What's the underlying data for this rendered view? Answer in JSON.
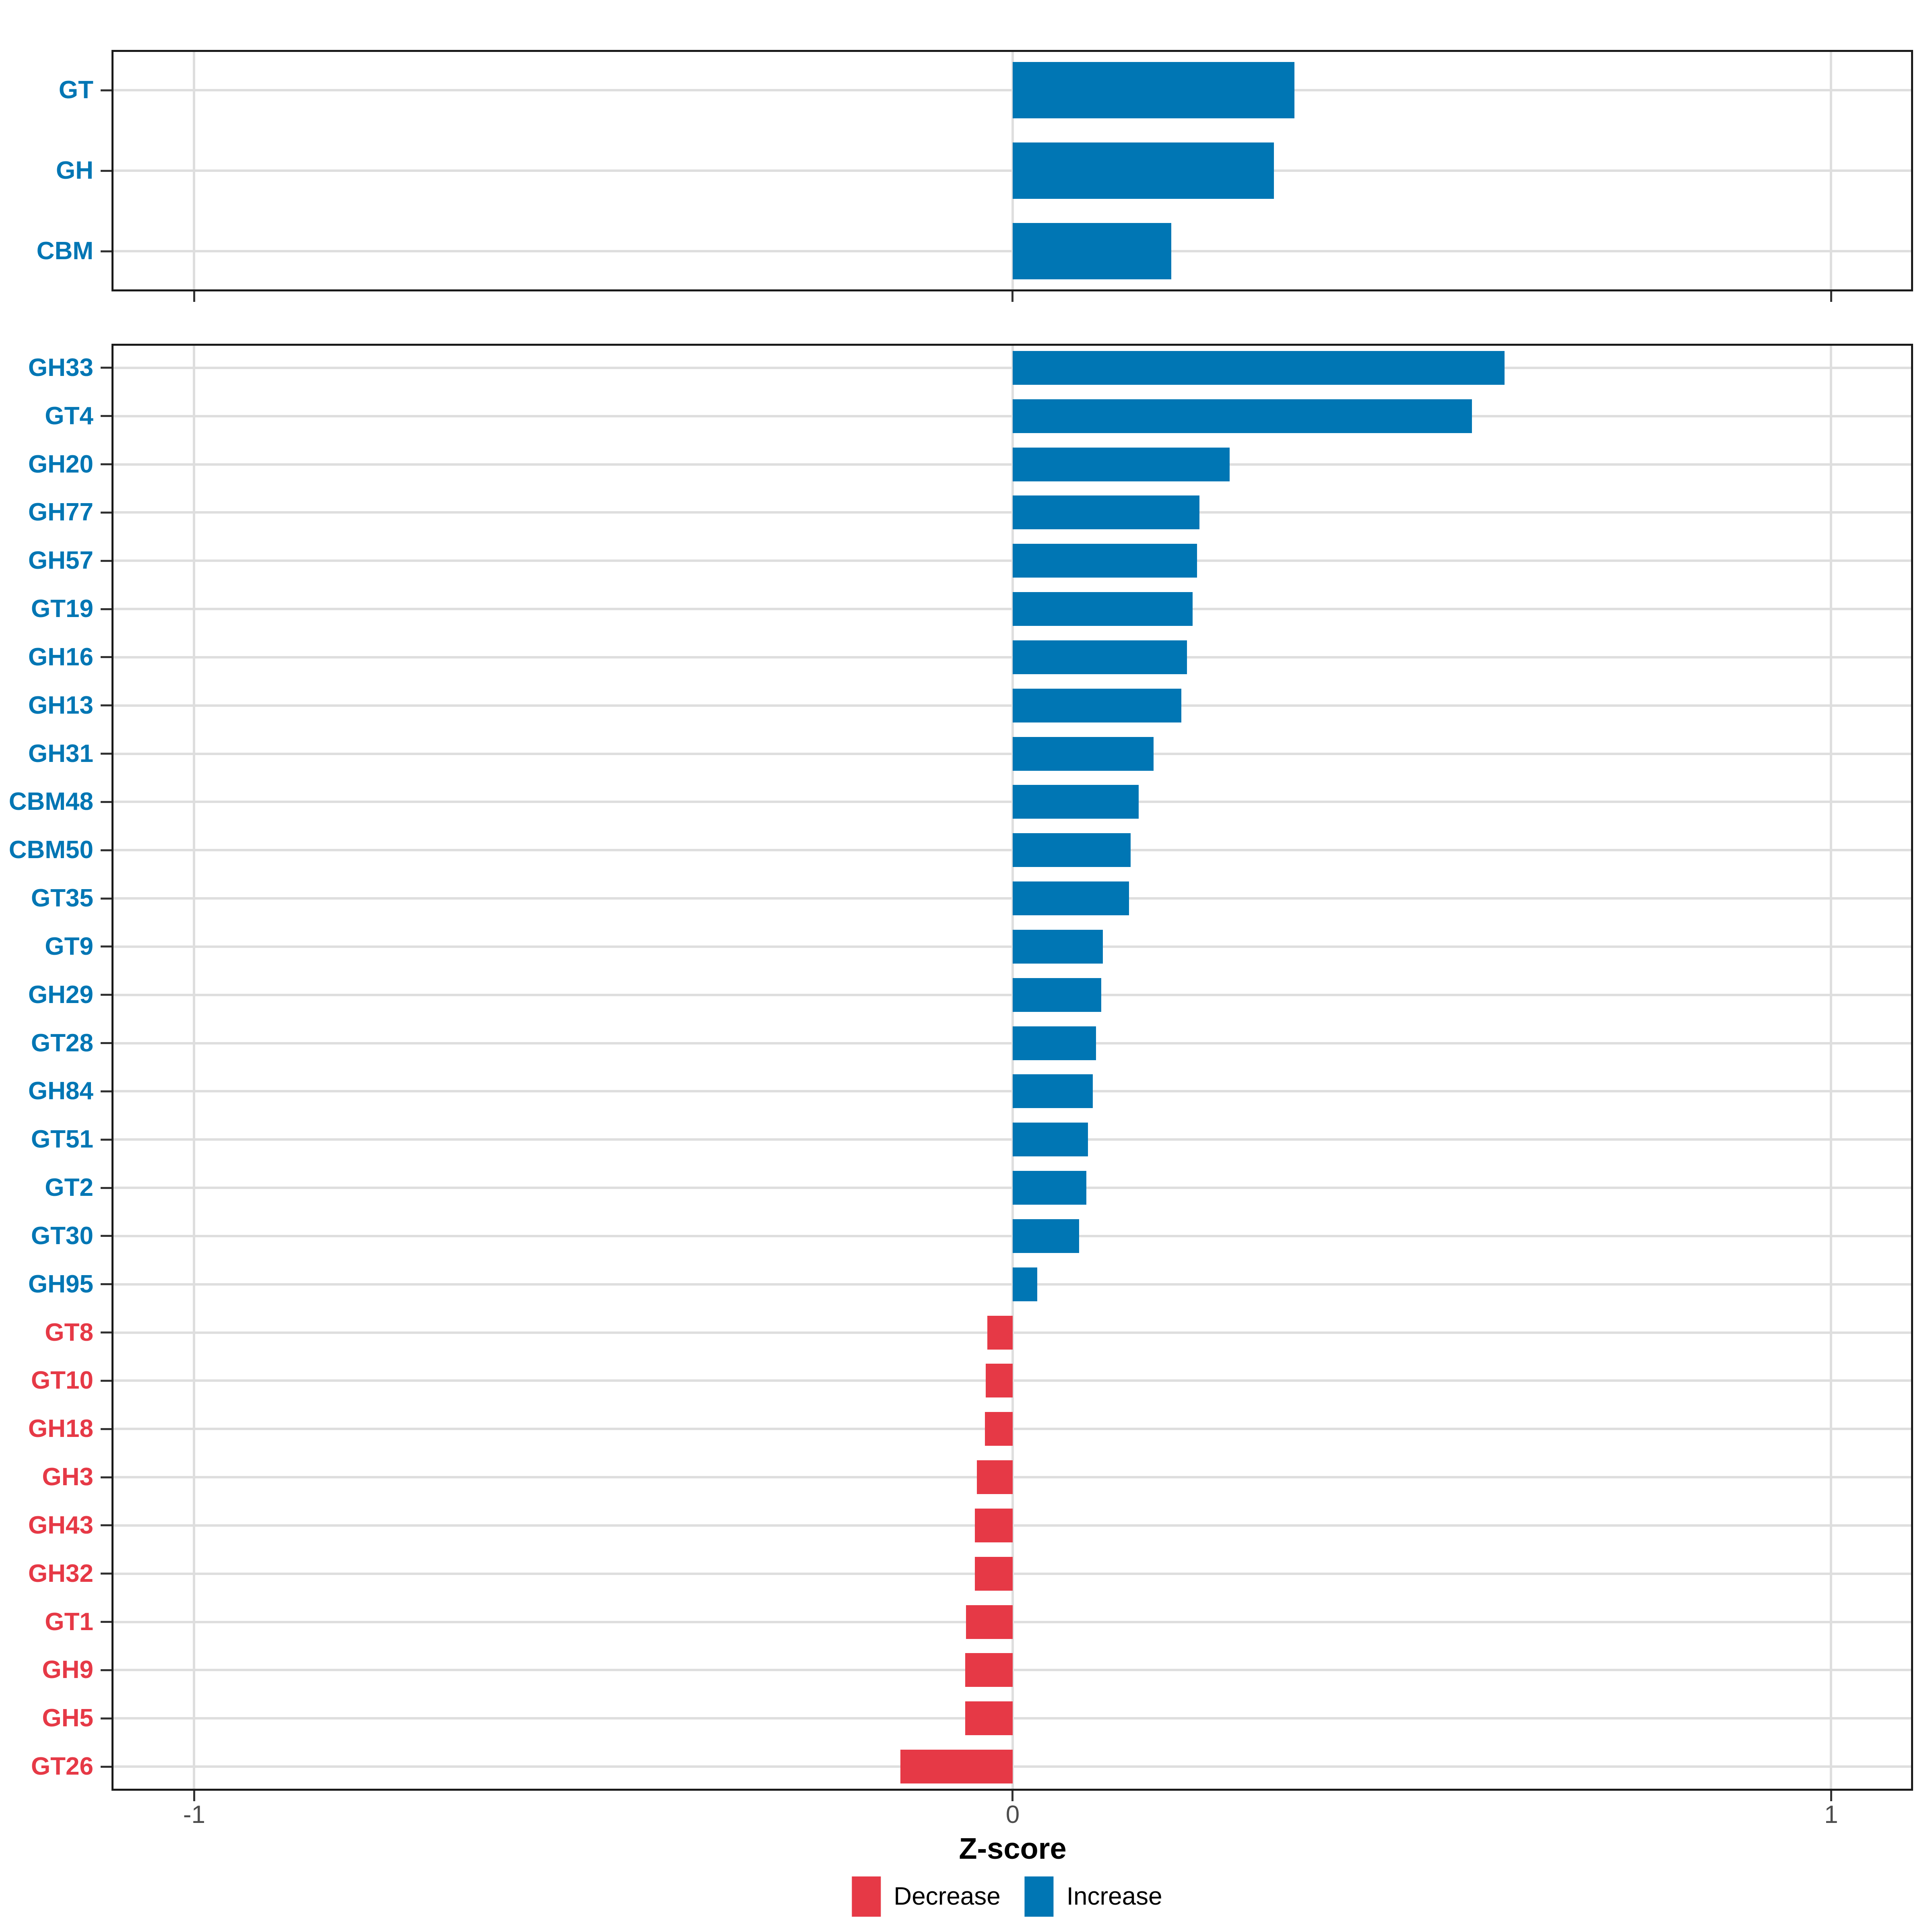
{
  "chart_data": {
    "type": "bar",
    "orientation": "horizontal",
    "title": "",
    "xlabel": "Z-score",
    "ylabel": "",
    "xlim": [
      -1.101,
      1.101
    ],
    "x_ticks": [
      -1,
      0,
      1
    ],
    "x_tick_labels": [
      "-1",
      "0",
      "1"
    ],
    "grid": "major-only",
    "legend_position": "bottom",
    "colors": {
      "increase": "#0076b4",
      "decrease": "#e63946"
    },
    "legend": [
      {
        "label": "Decrease",
        "direction": "decrease",
        "color": "#e63946"
      },
      {
        "label": "Increase",
        "direction": "increase",
        "color": "#0076b4"
      }
    ],
    "panels": [
      {
        "name": "cazyme-classes",
        "categories": [
          "GT",
          "GH",
          "CBM"
        ],
        "values": [
          0.344,
          0.319,
          0.194
        ]
      },
      {
        "name": "cazyme-families",
        "categories": [
          "GH33",
          "GT4",
          "GH20",
          "GH77",
          "GH57",
          "GT19",
          "GH16",
          "GH13",
          "GH31",
          "CBM48",
          "CBM50",
          "GT35",
          "GT9",
          "GH29",
          "GT28",
          "GH84",
          "GT51",
          "GT2",
          "GT30",
          "GH95",
          "GT8",
          "GT10",
          "GH18",
          "GH3",
          "GH43",
          "GH32",
          "GT1",
          "GH9",
          "GH5",
          "GT26"
        ],
        "values": [
          0.601,
          0.561,
          0.265,
          0.228,
          0.225,
          0.22,
          0.213,
          0.206,
          0.172,
          0.154,
          0.144,
          0.142,
          0.11,
          0.108,
          0.102,
          0.098,
          0.092,
          0.09,
          0.081,
          0.03,
          -0.031,
          -0.033,
          -0.034,
          -0.044,
          -0.046,
          -0.046,
          -0.057,
          -0.058,
          -0.058,
          -0.137
        ]
      }
    ]
  }
}
